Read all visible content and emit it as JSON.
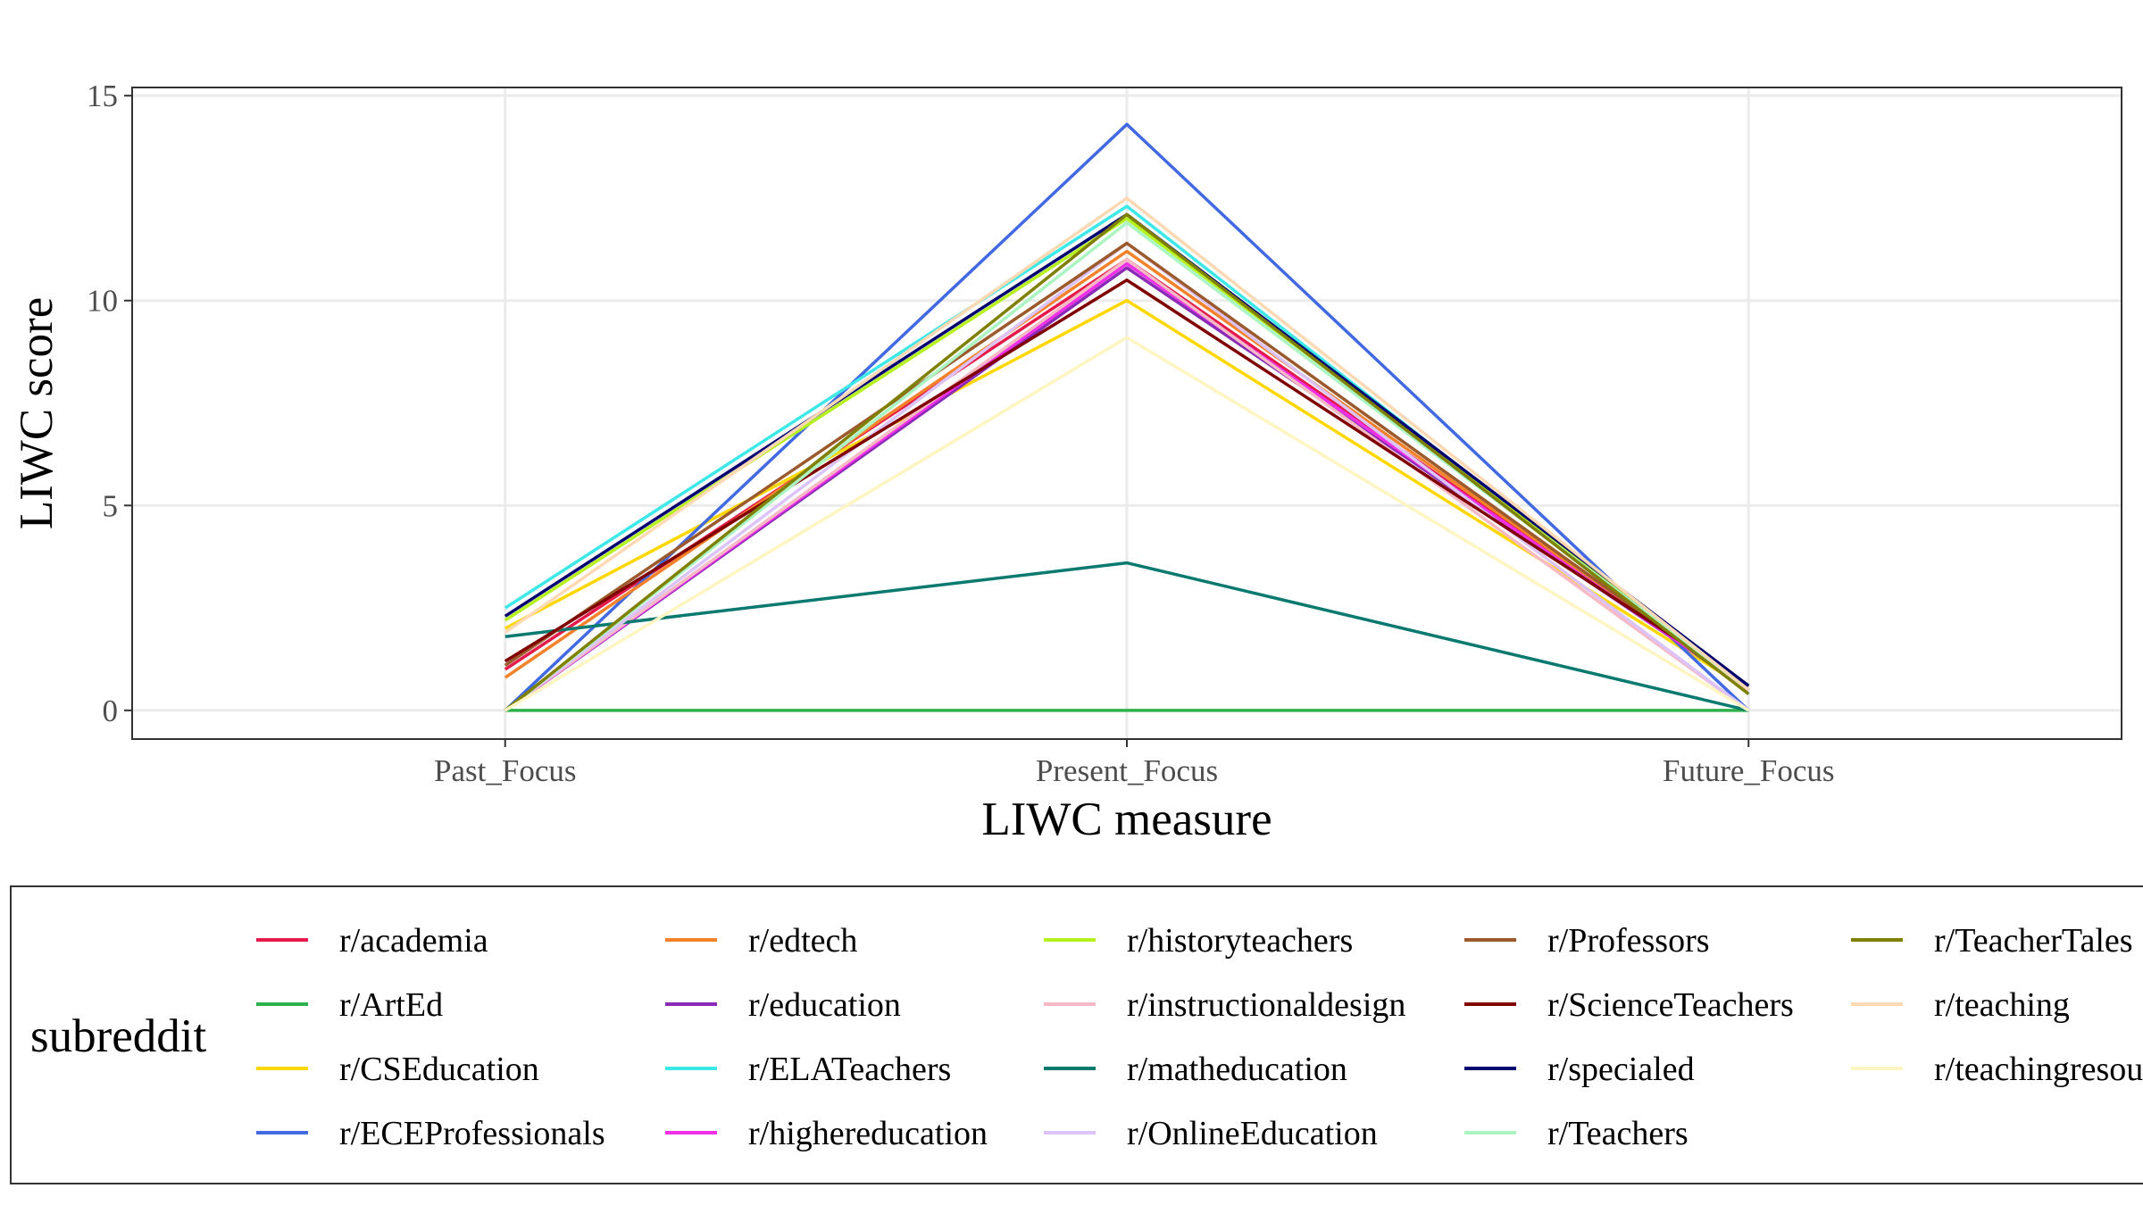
{
  "chart_data": {
    "type": "line",
    "xlabel": "LIWC measure",
    "ylabel": "LIWC score",
    "categories": [
      "Past_Focus",
      "Present_Focus",
      "Future_Focus"
    ],
    "ylim": [
      -0.7,
      15.2
    ],
    "yticks": [
      0,
      5,
      10,
      15
    ],
    "grid": true,
    "legend": {
      "title": "subreddit",
      "position": "bottom",
      "columns": 5
    },
    "series": [
      {
        "name": "r/academia",
        "color": "#e41a4a",
        "values": [
          1.0,
          11.0,
          0.5
        ]
      },
      {
        "name": "r/ArtEd",
        "color": "#2eb04a",
        "values": [
          0.0,
          0.0,
          0.0
        ]
      },
      {
        "name": "r/CSEducation",
        "color": "#ffd700",
        "values": [
          2.0,
          10.0,
          0.5
        ]
      },
      {
        "name": "r/ECEProfessionals",
        "color": "#4169e1",
        "values": [
          0.0,
          14.3,
          0.0
        ]
      },
      {
        "name": "r/edtech",
        "color": "#f5822a",
        "values": [
          0.8,
          11.2,
          0.5
        ]
      },
      {
        "name": "r/education",
        "color": "#8a2bb8",
        "values": [
          0.0,
          10.8,
          0.5
        ]
      },
      {
        "name": "r/ELATeachers",
        "color": "#3ee8e8",
        "values": [
          2.5,
          12.3,
          0.4
        ]
      },
      {
        "name": "r/highereducation",
        "color": "#f030e6",
        "values": [
          0.0,
          10.9,
          0.5
        ]
      },
      {
        "name": "r/historyteachers",
        "color": "#b5f01f",
        "values": [
          2.2,
          12.0,
          0.6
        ]
      },
      {
        "name": "r/instructionaldesign",
        "color": "#f7b9c4",
        "values": [
          0.0,
          11.0,
          0.0
        ]
      },
      {
        "name": "r/matheducation",
        "color": "#0a7a70",
        "values": [
          1.8,
          3.6,
          0.0
        ]
      },
      {
        "name": "r/OnlineEducation",
        "color": "#dcc4fa",
        "values": [
          0.0,
          11.4,
          0.0
        ]
      },
      {
        "name": "r/Professors",
        "color": "#9c5a2c",
        "values": [
          1.1,
          11.4,
          0.5
        ]
      },
      {
        "name": "r/ScienceTeachers",
        "color": "#800000",
        "values": [
          1.2,
          10.5,
          0.6
        ]
      },
      {
        "name": "r/specialed",
        "color": "#000070",
        "values": [
          2.3,
          12.1,
          0.6
        ]
      },
      {
        "name": "r/Teachers",
        "color": "#aaf5c2",
        "values": [
          0.0,
          11.9,
          0.5
        ]
      },
      {
        "name": "r/TeacherTales",
        "color": "#808000",
        "values": [
          0.0,
          12.1,
          0.4
        ]
      },
      {
        "name": "r/teaching",
        "color": "#ffd9b3",
        "values": [
          1.9,
          12.5,
          0.5
        ]
      },
      {
        "name": "r/teachingresources",
        "color": "#fff5c2",
        "values": [
          0.0,
          9.1,
          0.0
        ]
      }
    ]
  }
}
